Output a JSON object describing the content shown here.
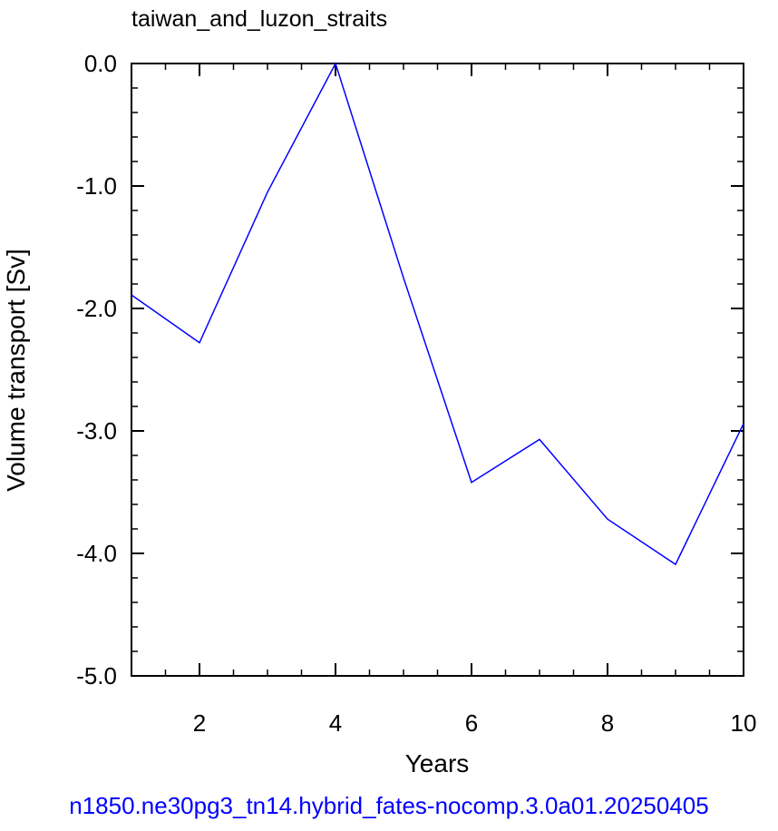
{
  "chart_data": {
    "type": "line",
    "title": "taiwan_and_luzon_straits",
    "xlabel": "Years",
    "ylabel": "Volume transport [Sv]",
    "footer": "n1850.ne30pg3_tn14.hybrid_fates-nocomp.3.0a01.20250405",
    "xlim": [
      1,
      10
    ],
    "ylim": [
      -5.0,
      0.0
    ],
    "x_ticks": [
      2,
      4,
      6,
      8,
      10
    ],
    "x_tick_labels": [
      "2",
      "4",
      "6",
      "8",
      "10"
    ],
    "y_ticks": [
      0.0,
      -1.0,
      -2.0,
      -3.0,
      -4.0,
      -5.0
    ],
    "y_tick_labels": [
      "0.0",
      "-1.0",
      "-2.0",
      "-3.0",
      "-4.0",
      "-5.0"
    ],
    "grid": false,
    "series": [
      {
        "color": "#0000ff",
        "x": [
          1,
          2,
          3,
          4,
          5,
          6,
          7,
          8,
          9,
          10
        ],
        "y": [
          -1.89,
          -2.28,
          -1.05,
          0.0,
          -1.75,
          -3.42,
          -3.07,
          -3.72,
          -4.09,
          -2.94
        ]
      }
    ]
  },
  "colors": {
    "axis": "#000000",
    "footer": "#0000ff"
  }
}
